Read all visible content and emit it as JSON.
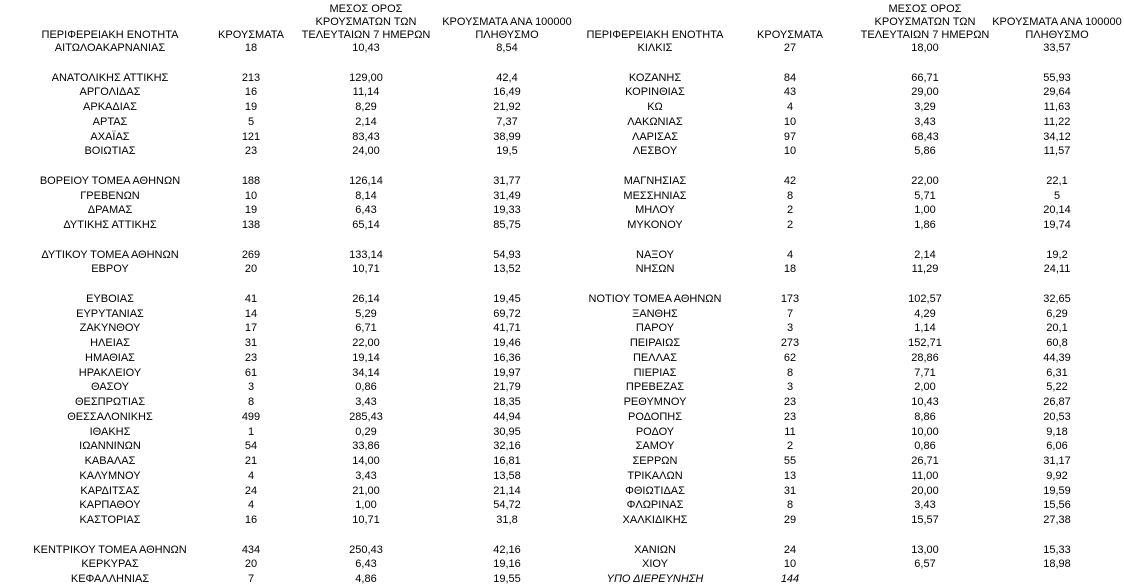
{
  "left": {
    "header": [
      "ΠΕΡΙΦΕΡΕΙΑΚΗ ΕΝΟΤΗΤΑ",
      "ΚΡΟΥΣΜΑΤΑ",
      "ΜΕΣΟΣ ΟΡΟΣ ΚΡΟΥΣΜΑΤΩΝ ΤΩΝ ΤΕΛΕΥΤΑΙΩΝ 7 ΗΜΕΡΩΝ",
      "ΚΡΟΥΣΜΑΤΑ ΑΝΑ 100000 ΠΛΗΘΥΣΜΟ"
    ],
    "groups": [
      [
        [
          "ΑΙΤΩΛΟΑΚΑΡΝΑΝΙΑΣ",
          "18",
          "10,43",
          "8,54"
        ]
      ],
      [
        [
          "ΑΝΑΤΟΛΙΚΗΣ ΑΤΤΙΚΗΣ",
          "213",
          "129,00",
          "42,4"
        ],
        [
          "ΑΡΓΟΛΙΔΑΣ",
          "16",
          "11,14",
          "16,49"
        ],
        [
          "ΑΡΚΑΔΙΑΣ",
          "19",
          "8,29",
          "21,92"
        ],
        [
          "ΑΡΤΑΣ",
          "5",
          "2,14",
          "7,37"
        ],
        [
          "ΑΧΑΪΑΣ",
          "121",
          "83,43",
          "38,99"
        ],
        [
          "ΒΟΙΩΤΙΑΣ",
          "23",
          "24,00",
          "19,5"
        ]
      ],
      [
        [
          "ΒΟΡΕΙΟΥ ΤΟΜΕΑ ΑΘΗΝΩΝ",
          "188",
          "126,14",
          "31,77"
        ],
        [
          "ΓΡΕΒΕΝΩΝ",
          "10",
          "8,14",
          "31,49"
        ],
        [
          "ΔΡΑΜΑΣ",
          "19",
          "6,43",
          "19,33"
        ],
        [
          "ΔΥΤΙΚΗΣ ΑΤΤΙΚΗΣ",
          "138",
          "65,14",
          "85,75"
        ]
      ],
      [
        [
          "ΔΥΤΙΚΟΥ ΤΟΜΕΑ ΑΘΗΝΩΝ",
          "269",
          "133,14",
          "54,93"
        ],
        [
          "ΕΒΡΟΥ",
          "20",
          "10,71",
          "13,52"
        ]
      ],
      [
        [
          "ΕΥΒΟΙΑΣ",
          "41",
          "26,14",
          "19,45"
        ],
        [
          "ΕΥΡΥΤΑΝΙΑΣ",
          "14",
          "5,29",
          "69,72"
        ],
        [
          "ΖΑΚΥΝΘΟΥ",
          "17",
          "6,71",
          "41,71"
        ],
        [
          "ΗΛΕΙΑΣ",
          "31",
          "22,00",
          "19,46"
        ],
        [
          "ΗΜΑΘΙΑΣ",
          "23",
          "19,14",
          "16,36"
        ],
        [
          "ΗΡΑΚΛΕΙΟΥ",
          "61",
          "34,14",
          "19,97"
        ],
        [
          "ΘΑΣΟΥ",
          "3",
          "0,86",
          "21,79"
        ],
        [
          "ΘΕΣΠΡΩΤΙΑΣ",
          "8",
          "3,43",
          "18,35"
        ],
        [
          "ΘΕΣΣΑΛΟΝΙΚΗΣ",
          "499",
          "285,43",
          "44,94"
        ],
        [
          "ΙΘΑΚΗΣ",
          "1",
          "0,29",
          "30,95"
        ],
        [
          "ΙΩΑΝΝΙΝΩΝ",
          "54",
          "33,86",
          "32,16"
        ],
        [
          "ΚΑΒΑΛΑΣ",
          "21",
          "14,00",
          "16,81"
        ],
        [
          "ΚΑΛΥΜΝΟΥ",
          "4",
          "3,43",
          "13,58"
        ],
        [
          "ΚΑΡΔΙΤΣΑΣ",
          "24",
          "21,00",
          "21,14"
        ],
        [
          "ΚΑΡΠΑΘΟΥ",
          "4",
          "1,00",
          "54,72"
        ],
        [
          "ΚΑΣΤΟΡΙΑΣ",
          "16",
          "10,71",
          "31,8"
        ]
      ],
      [
        [
          "ΚΕΝΤΡΙΚΟΥ ΤΟΜΕΑ ΑΘΗΝΩΝ",
          "434",
          "250,43",
          "42,16"
        ],
        [
          "ΚΕΡΚΥΡΑΣ",
          "20",
          "6,43",
          "19,16"
        ],
        [
          "ΚΕΦΑΛΛΗΝΙΑΣ",
          "7",
          "4,86",
          "19,55"
        ]
      ]
    ]
  },
  "right": {
    "header": [
      "ΠΕΡΙΦΕΡΕΙΑΚΗ ΕΝΟΤΗΤΑ",
      "ΚΡΟΥΣΜΑΤΑ",
      "ΜΕΣΟΣ ΟΡΟΣ ΚΡΟΥΣΜΑΤΩΝ ΤΩΝ ΤΕΛΕΥΤΑΙΩΝ 7 ΗΜΕΡΩΝ",
      "ΚΡΟΥΣΜΑΤΑ ΑΝΑ 100000 ΠΛΗΘΥΣΜΟ"
    ],
    "groups": [
      [
        [
          "ΚΙΛΚΙΣ",
          "27",
          "18,00",
          "33,57"
        ]
      ],
      [
        [
          "ΚΟΖΑΝΗΣ",
          "84",
          "66,71",
          "55,93"
        ],
        [
          "ΚΟΡΙΝΘΙΑΣ",
          "43",
          "29,00",
          "29,64"
        ],
        [
          "ΚΩ",
          "4",
          "3,29",
          "11,63"
        ],
        [
          "ΛΑΚΩΝΙΑΣ",
          "10",
          "3,43",
          "11,22"
        ],
        [
          "ΛΑΡΙΣΑΣ",
          "97",
          "68,43",
          "34,12"
        ],
        [
          "ΛΕΣΒΟΥ",
          "10",
          "5,86",
          "11,57"
        ]
      ],
      [
        [
          "ΜΑΓΝΗΣΙΑΣ",
          "42",
          "22,00",
          "22,1"
        ],
        [
          "ΜΕΣΣΗΝΙΑΣ",
          "8",
          "5,71",
          "5"
        ],
        [
          "ΜΗΛΟΥ",
          "2",
          "1,00",
          "20,14"
        ],
        [
          "ΜΥΚΟΝΟΥ",
          "2",
          "1,86",
          "19,74"
        ]
      ],
      [
        [
          "ΝΑΞΟΥ",
          "4",
          "2,14",
          "19,2"
        ],
        [
          "ΝΗΣΩΝ",
          "18",
          "11,29",
          "24,11"
        ]
      ],
      [
        [
          "ΝΟΤΙΟΥ ΤΟΜΕΑ ΑΘΗΝΩΝ",
          "173",
          "102,57",
          "32,65"
        ],
        [
          "ΞΑΝΘΗΣ",
          "7",
          "4,29",
          "6,29"
        ],
        [
          "ΠΑΡΟΥ",
          "3",
          "1,14",
          "20,1"
        ],
        [
          "ΠΕΙΡΑΙΩΣ",
          "273",
          "152,71",
          "60,8"
        ],
        [
          "ΠΕΛΛΑΣ",
          "62",
          "28,86",
          "44,39"
        ],
        [
          "ΠΙΕΡΙΑΣ",
          "8",
          "7,71",
          "6,31"
        ],
        [
          "ΠΡΕΒΕΖΑΣ",
          "3",
          "2,00",
          "5,22"
        ],
        [
          "ΡΕΘΥΜΝΟΥ",
          "23",
          "10,43",
          "26,87"
        ],
        [
          "ΡΟΔΟΠΗΣ",
          "23",
          "8,86",
          "20,53"
        ],
        [
          "ΡΟΔΟΥ",
          "11",
          "10,00",
          "9,18"
        ],
        [
          "ΣΑΜΟΥ",
          "2",
          "0,86",
          "6,06"
        ],
        [
          "ΣΕΡΡΩΝ",
          "55",
          "26,71",
          "31,17"
        ],
        [
          "ΤΡΙΚΑΛΩΝ",
          "13",
          "11,00",
          "9,92"
        ],
        [
          "ΦΘΙΩΤΙΔΑΣ",
          "31",
          "20,00",
          "19,59"
        ],
        [
          "ΦΛΩΡΙΝΑΣ",
          "8",
          "3,43",
          "15,56"
        ],
        [
          "ΧΑΛΚΙΔΙΚΗΣ",
          "29",
          "15,57",
          "27,38"
        ]
      ],
      [
        [
          "ΧΑΝΙΩΝ",
          "24",
          "13,00",
          "15,33"
        ],
        [
          "ΧΙΟΥ",
          "10",
          "6,57",
          "18,98"
        ]
      ]
    ],
    "note": [
      "ΥΠΟ ΔΙΕΡΕΥΝΗΣΗ",
      "144"
    ]
  }
}
